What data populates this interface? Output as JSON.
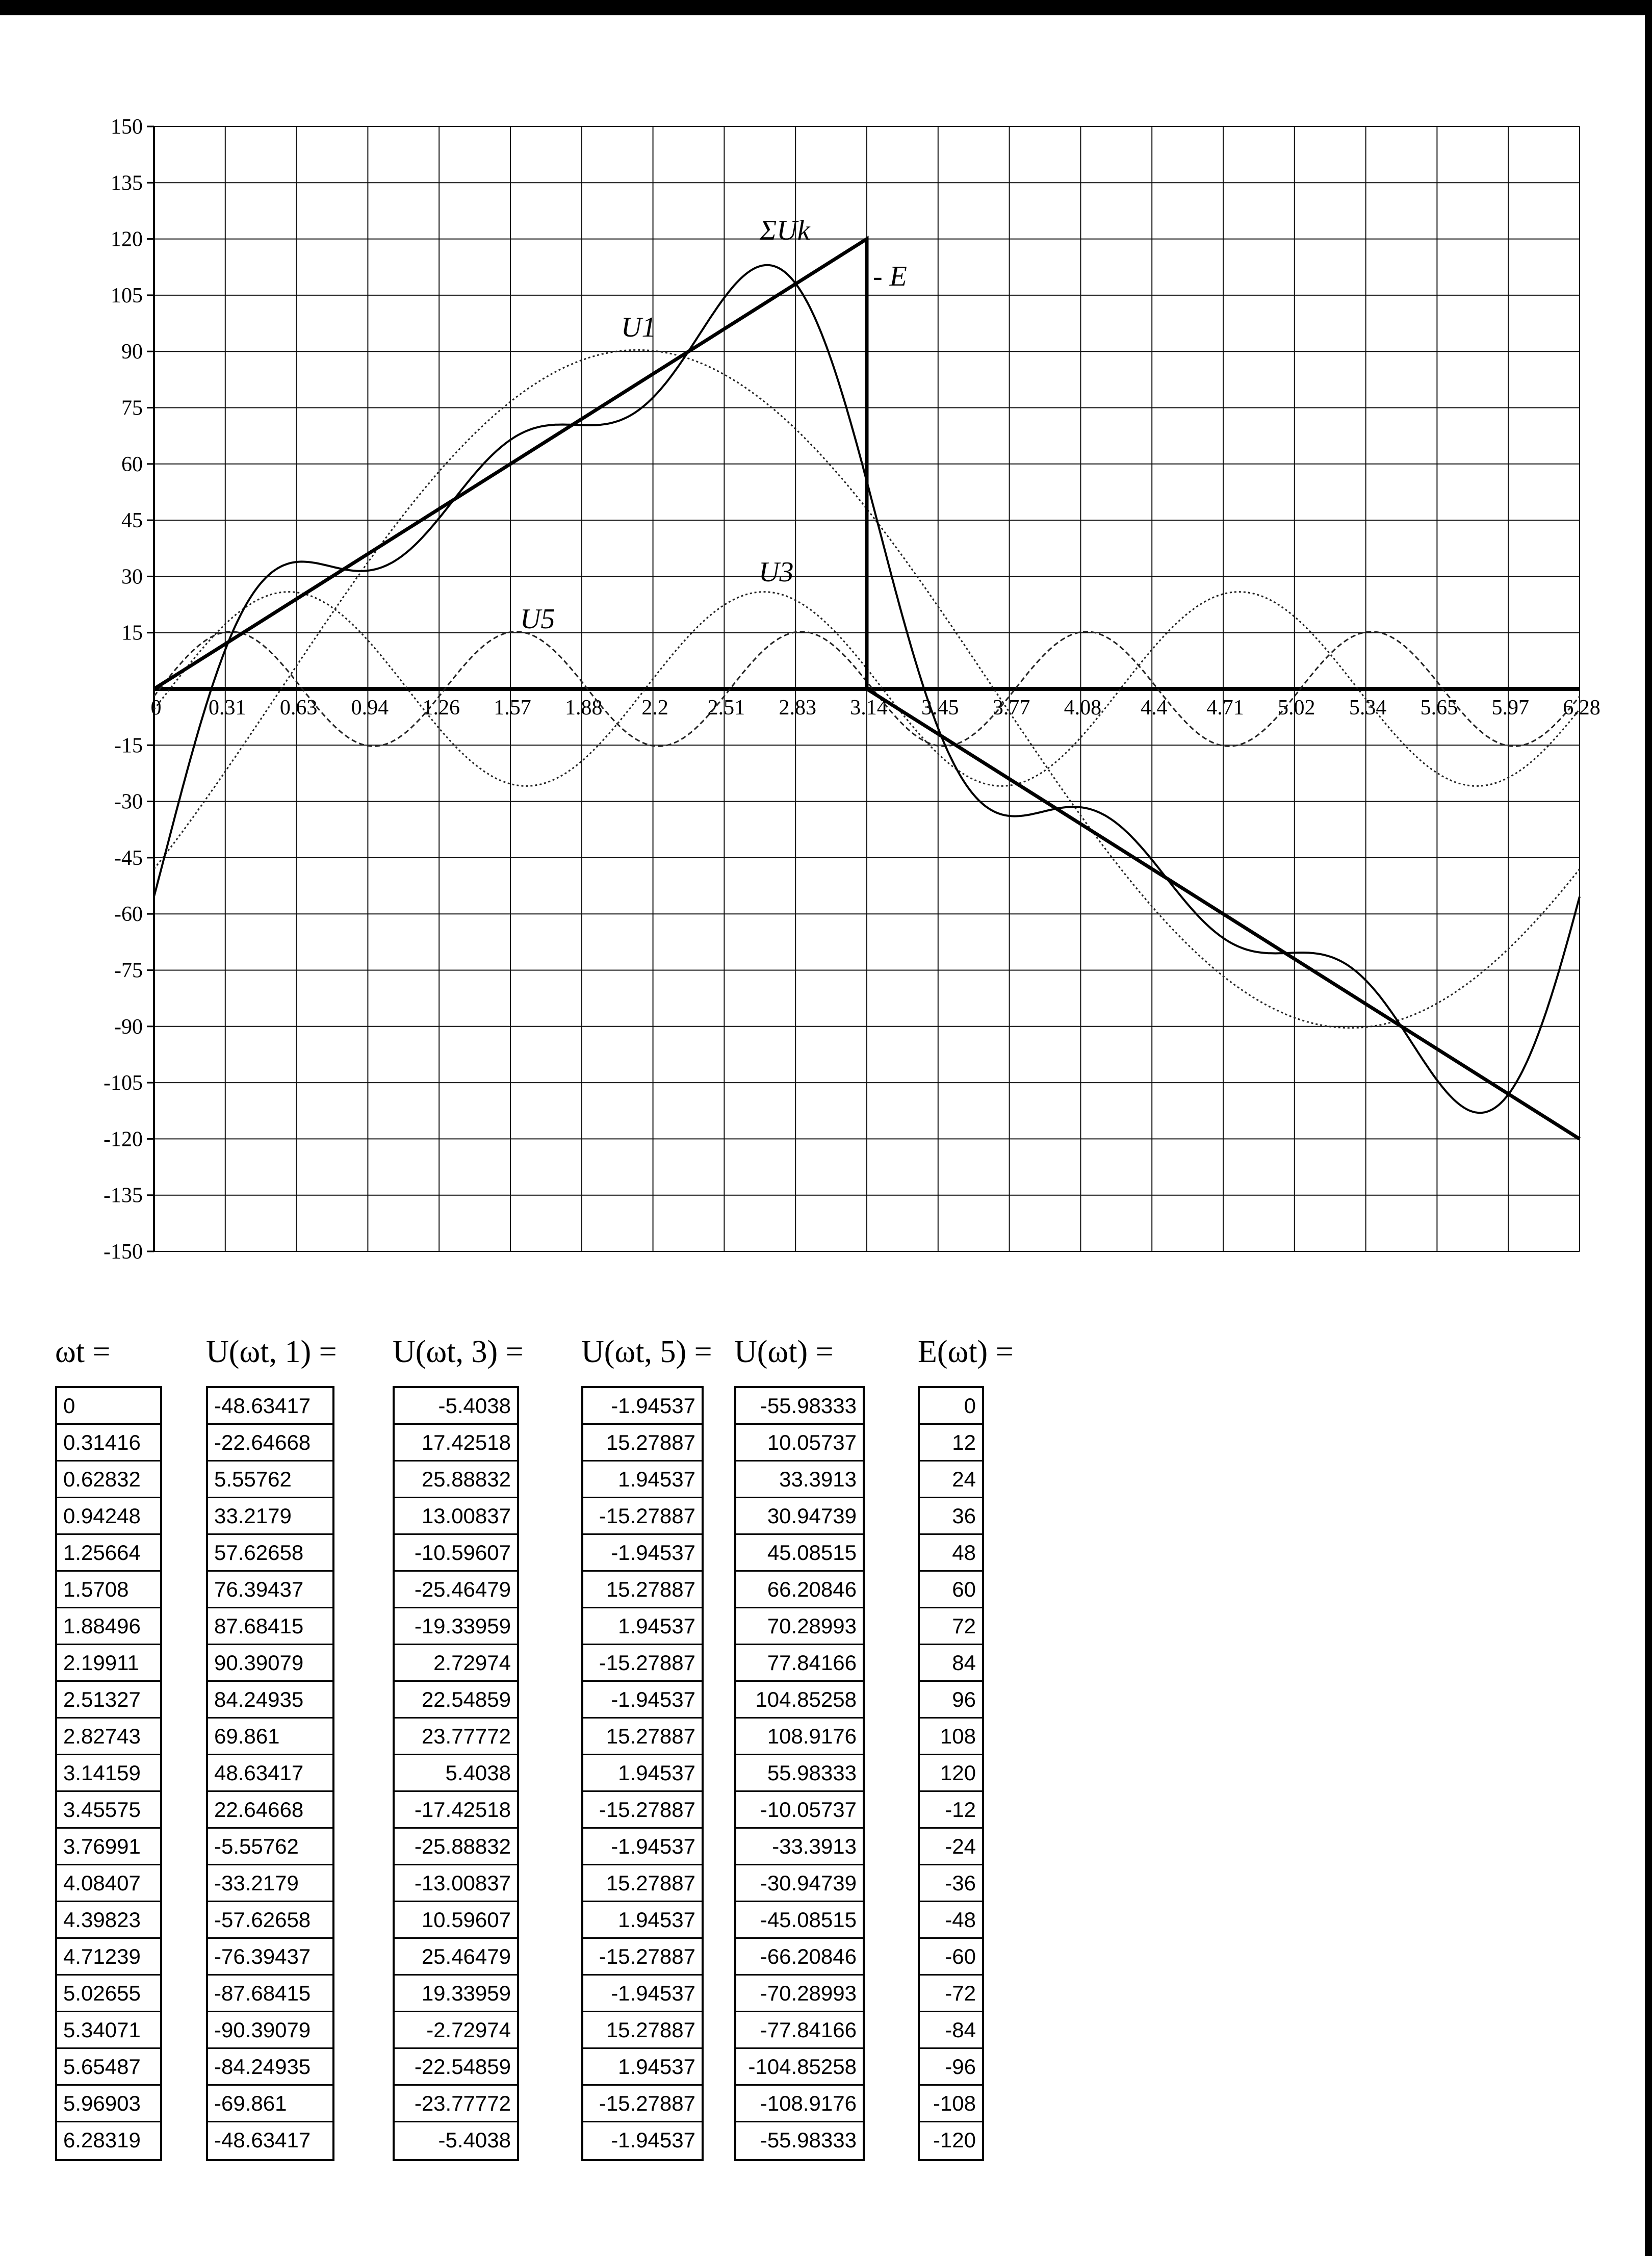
{
  "chart_data": {
    "type": "line",
    "title": "",
    "xlabel": "",
    "ylabel": "",
    "xlim": [
      0,
      6.28319
    ],
    "ylim": [
      -150,
      150
    ],
    "y_ticks": [
      "150",
      "135",
      "120",
      "105",
      "90",
      "75",
      "60",
      "45",
      "30",
      "15",
      "-15",
      "-30",
      "-45",
      "-60",
      "-75",
      "-90",
      "-105",
      "-120",
      "-135",
      "-150"
    ],
    "x_ticks": [
      "0",
      "0.31",
      "0.63",
      "0.94",
      "1.26",
      "1.57",
      "1.88",
      "2.2",
      "2.51",
      "2.83",
      "3.14",
      "3.45",
      "3.77",
      "4.08",
      "4.4",
      "4.71",
      "5.02",
      "5.34",
      "5.65",
      "5.97",
      "6.28"
    ],
    "grid": true,
    "annotations": [
      "U1",
      "U3",
      "U5",
      "ΣUk",
      "E"
    ],
    "x": [
      0,
      0.31416,
      0.62832,
      0.94248,
      1.25664,
      1.5708,
      1.88496,
      2.19911,
      2.51327,
      2.82743,
      3.14159,
      3.45575,
      3.76991,
      4.08407,
      4.39823,
      4.71239,
      5.02655,
      5.34071,
      5.65487,
      5.96903,
      6.28319
    ],
    "series": [
      {
        "name": "U1",
        "style": "dotted",
        "values": [
          -48.63417,
          -22.64668,
          5.55762,
          33.2179,
          57.62658,
          76.39437,
          87.68415,
          90.39079,
          84.24935,
          69.861,
          48.63417,
          22.64668,
          -5.55762,
          -33.2179,
          -57.62658,
          -76.39437,
          -87.68415,
          -90.39079,
          -84.24935,
          -69.861,
          -48.63417
        ]
      },
      {
        "name": "U3",
        "style": "dotted",
        "values": [
          -5.4038,
          17.42518,
          25.88832,
          13.00837,
          -10.59607,
          -25.46479,
          -19.33959,
          2.72974,
          22.54859,
          23.77772,
          5.4038,
          -17.42518,
          -25.88832,
          -13.00837,
          10.59607,
          25.46479,
          19.33959,
          -2.72974,
          -22.54859,
          -23.77772,
          -5.4038
        ]
      },
      {
        "name": "U5",
        "style": "dashed",
        "values": [
          -1.94537,
          15.27887,
          1.94537,
          -15.27887,
          -1.94537,
          15.27887,
          1.94537,
          -15.27887,
          -1.94537,
          15.27887,
          1.94537,
          -15.27887,
          -1.94537,
          15.27887,
          1.94537,
          -15.27887,
          -1.94537,
          15.27887,
          1.94537,
          -15.27887,
          -1.94537
        ]
      },
      {
        "name": "ΣUk",
        "style": "solid",
        "values": [
          -55.98333,
          10.05737,
          33.3913,
          30.94739,
          45.08515,
          66.20846,
          70.28993,
          77.84166,
          104.85258,
          108.9176,
          55.98333,
          -10.05737,
          -33.3913,
          -30.94739,
          -45.08515,
          -66.20846,
          -70.28993,
          -77.84166,
          -104.85258,
          -108.9176,
          -55.98333
        ]
      },
      {
        "name": "E",
        "style": "bold",
        "values": [
          0,
          12,
          24,
          36,
          48,
          60,
          72,
          84,
          96,
          108,
          120,
          -12,
          -24,
          -36,
          -48,
          -60,
          -72,
          -84,
          -96,
          -108,
          -120
        ]
      }
    ]
  },
  "tables": {
    "headers": {
      "wt": "ωt =",
      "u1": "U(ωt, 1) =",
      "u3": "U(ωt, 3) =",
      "u5": "U(ωt, 5) =",
      "u": "U(ωt) =",
      "e": "E(ωt) ="
    },
    "wt": [
      "0",
      "0.31416",
      "0.62832",
      "0.94248",
      "1.25664",
      "1.5708",
      "1.88496",
      "2.19911",
      "2.51327",
      "2.82743",
      "3.14159",
      "3.45575",
      "3.76991",
      "4.08407",
      "4.39823",
      "4.71239",
      "5.02655",
      "5.34071",
      "5.65487",
      "5.96903",
      "6.28319"
    ],
    "u1": [
      "-48.63417",
      "-22.64668",
      "5.55762",
      "33.2179",
      "57.62658",
      "76.39437",
      "87.68415",
      "90.39079",
      "84.24935",
      "69.861",
      "48.63417",
      "22.64668",
      "-5.55762",
      "-33.2179",
      "-57.62658",
      "-76.39437",
      "-87.68415",
      "-90.39079",
      "-84.24935",
      "-69.861",
      "-48.63417"
    ],
    "u3": [
      "-5.4038",
      "17.42518",
      "25.88832",
      "13.00837",
      "-10.59607",
      "-25.46479",
      "-19.33959",
      "2.72974",
      "22.54859",
      "23.77772",
      "5.4038",
      "-17.42518",
      "-25.88832",
      "-13.00837",
      "10.59607",
      "25.46479",
      "19.33959",
      "-2.72974",
      "-22.54859",
      "-23.77772",
      "-5.4038"
    ],
    "u5": [
      "-1.94537",
      "15.27887",
      "1.94537",
      "-15.27887",
      "-1.94537",
      "15.27887",
      "1.94537",
      "-15.27887",
      "-1.94537",
      "15.27887",
      "1.94537",
      "-15.27887",
      "-1.94537",
      "15.27887",
      "1.94537",
      "-15.27887",
      "-1.94537",
      "15.27887",
      "1.94537",
      "-15.27887",
      "-1.94537"
    ],
    "u": [
      "-55.98333",
      "10.05737",
      "33.3913",
      "30.94739",
      "45.08515",
      "66.20846",
      "70.28993",
      "77.84166",
      "104.85258",
      "108.9176",
      "55.98333",
      "-10.05737",
      "-33.3913",
      "-30.94739",
      "-45.08515",
      "-66.20846",
      "-70.28993",
      "-77.84166",
      "-104.85258",
      "-108.9176",
      "-55.98333"
    ],
    "e": [
      "0",
      "12",
      "24",
      "36",
      "48",
      "60",
      "72",
      "84",
      "96",
      "108",
      "120",
      "-12",
      "-24",
      "-36",
      "-48",
      "-60",
      "-72",
      "-84",
      "-96",
      "-108",
      "-120"
    ]
  }
}
